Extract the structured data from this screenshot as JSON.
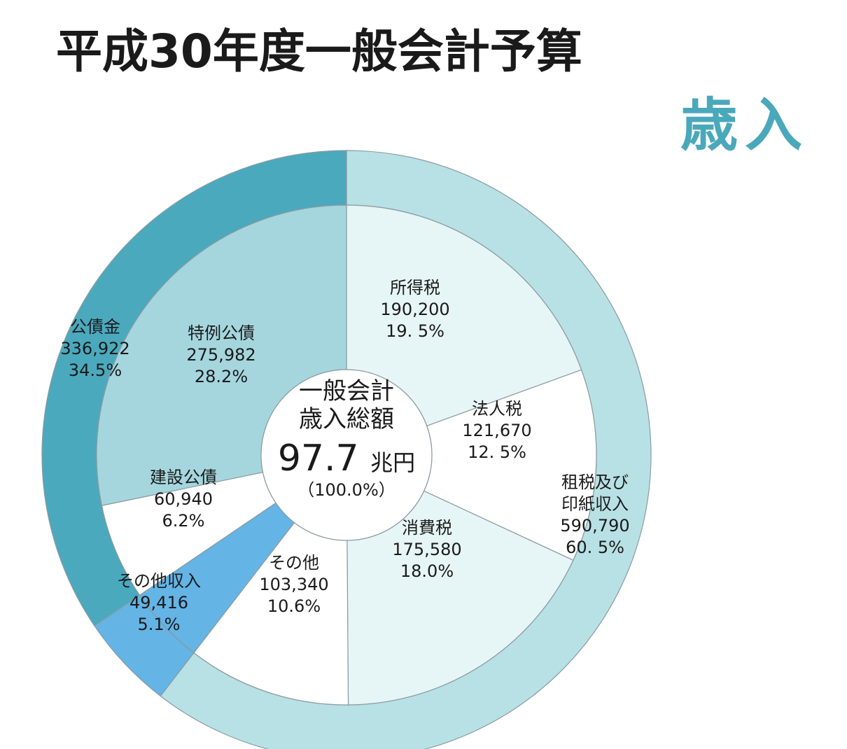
{
  "title": "平成30年度一般会計予算",
  "subtitle": "歳入",
  "colors": {
    "outer_tax": "#b8e1e5",
    "outer_bond": "#4ba9bd",
    "outer_other": "#64b4e6",
    "inner_income": "#e6f5f6",
    "inner_corporate": "#ffffff",
    "inner_consumption": "#e6f5f6",
    "inner_other": "#ffffff",
    "inner_deficit_bond": "#a5d6de",
    "inner_construction_bond": "#ffffff",
    "border": "#8a9aa0",
    "title": "#1a1a1a",
    "subtitle": "#4aa8bb"
  },
  "chart_data": {
    "type": "pie",
    "style": "double-donut",
    "center": {
      "line1": "一般会計",
      "line2": "歳入総額",
      "value": "97.7",
      "unit": "兆円",
      "percent": "（100.0%）"
    },
    "outer_ring": [
      {
        "name": "租税及び印紙収入",
        "name_lines": [
          "租税及び",
          "印紙収入"
        ],
        "value": 590790,
        "value_label": "590,790",
        "percent_label": "60. 5%",
        "color_key": "outer_tax"
      },
      {
        "name": "その他収入",
        "name_lines": [
          "その他収入"
        ],
        "value": 49416,
        "value_label": "49,416",
        "percent_label": "5.1%",
        "color_key": "outer_other"
      },
      {
        "name": "公債金",
        "name_lines": [
          "公債金"
        ],
        "value": 336922,
        "value_label": "336,922",
        "percent_label": "34.5%",
        "color_key": "outer_bond"
      }
    ],
    "inner_ring": [
      {
        "name": "所得税",
        "value": 190200,
        "value_label": "190,200",
        "percent_label": "19. 5%",
        "color_key": "inner_income"
      },
      {
        "name": "法人税",
        "value": 121670,
        "value_label": "121,670",
        "percent_label": "12. 5%",
        "color_key": "inner_corporate"
      },
      {
        "name": "消費税",
        "value": 175580,
        "value_label": "175,580",
        "percent_label": "18.0%",
        "color_key": "inner_consumption"
      },
      {
        "name": "その他",
        "value": 103340,
        "value_label": "103,340",
        "percent_label": "10.6%",
        "color_key": "inner_other"
      },
      {
        "name": "その他収入",
        "value": 49416,
        "value_label": "",
        "percent_label": "",
        "color_key": "outer_other"
      },
      {
        "name": "建設公債",
        "value": 60940,
        "value_label": "60,940",
        "percent_label": "6.2%",
        "color_key": "inner_construction_bond"
      },
      {
        "name": "特例公債",
        "value": 275982,
        "value_label": "275,982",
        "percent_label": "28.2%",
        "color_key": "inner_deficit_bond"
      }
    ]
  }
}
